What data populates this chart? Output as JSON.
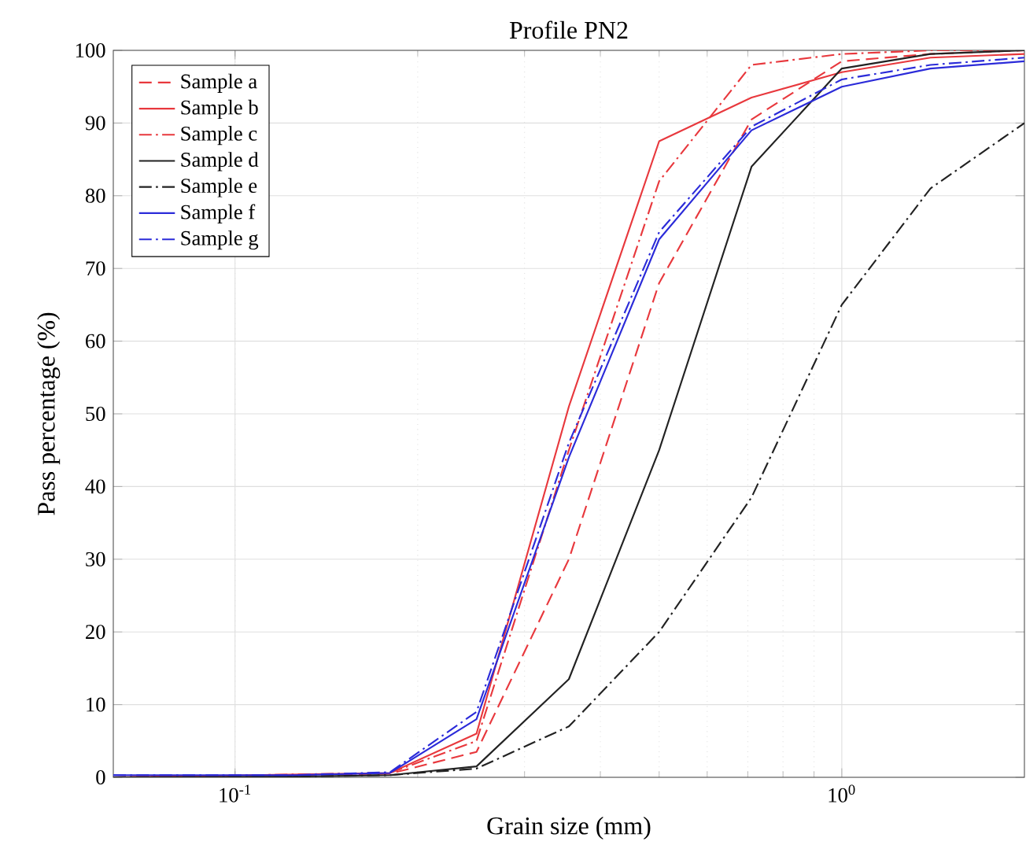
{
  "chart_data": {
    "type": "line",
    "title": "Profile PN2",
    "xlabel": "Grain size (mm)",
    "ylabel": "Pass percentage (%)",
    "x": [
      0.063,
      0.125,
      0.18,
      0.25,
      0.355,
      0.5,
      0.71,
      1.0,
      1.4,
      2.0
    ],
    "series": [
      {
        "name": "Sample a",
        "color": "#e8383d",
        "line_style": "dashed",
        "values": [
          0,
          null,
          0.5,
          3.5,
          30,
          68,
          90.5,
          98.5,
          99.5,
          100
        ]
      },
      {
        "name": "Sample b",
        "color": "#e8383d",
        "line_style": "solid",
        "values": [
          0,
          null,
          0.6,
          6,
          51,
          87.5,
          93.5,
          97,
          99,
          99.5
        ]
      },
      {
        "name": "Sample c",
        "color": "#e8383d",
        "line_style": "dashdot",
        "values": [
          0,
          null,
          0.6,
          5,
          45,
          82,
          98,
          99.5,
          100,
          100
        ]
      },
      {
        "name": "Sample d",
        "color": "#222222",
        "line_style": "solid",
        "values": [
          0,
          0.1,
          0.3,
          1.5,
          13.5,
          45,
          84,
          97.5,
          99.5,
          100
        ]
      },
      {
        "name": "Sample e",
        "color": "#222222",
        "line_style": "dashdot",
        "values": [
          0,
          0.1,
          0.3,
          1.2,
          7,
          20,
          38.5,
          65,
          81,
          90
        ]
      },
      {
        "name": "Sample f",
        "color": "#2b2bd9",
        "line_style": "solid",
        "values": [
          0.3,
          0.3,
          0.6,
          8,
          44,
          74,
          89,
          95,
          97.5,
          98.5
        ]
      },
      {
        "name": "Sample g",
        "color": "#2b2bd9",
        "line_style": "dashdot",
        "values": [
          0.3,
          0.3,
          0.7,
          9,
          46,
          75,
          89.5,
          96,
          98,
          99
        ]
      }
    ],
    "xlim": [
      0.063,
      2.0
    ],
    "ylim": [
      0,
      100
    ],
    "xticks": [
      {
        "value": 0.1,
        "label": "10$^{-1}$"
      },
      {
        "value": 1,
        "label": "10$^{0}$"
      }
    ],
    "yticks": [
      0,
      10,
      20,
      30,
      40,
      50,
      60,
      70,
      80,
      90,
      100
    ],
    "log": "x",
    "grid": true,
    "legend": "top left",
    "marker": "none"
  }
}
